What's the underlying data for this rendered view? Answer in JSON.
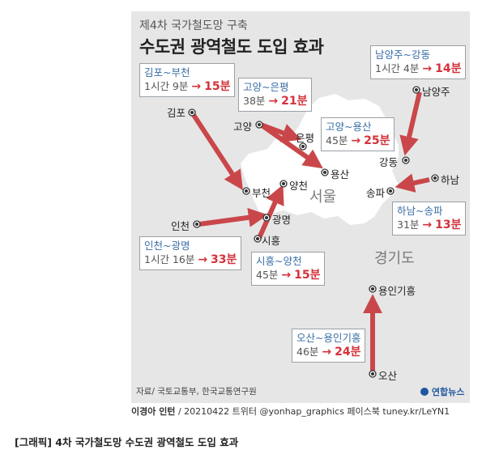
{
  "kicker": "제4차 국가철도망 구축",
  "headline": "수도권 광역철도 도입 효과",
  "routes": [
    {
      "id": "gimpo-bucheon",
      "title": "김포~부천",
      "before": "1시간 9분",
      "arrow": "→",
      "after": "15분"
    },
    {
      "id": "goyang-eunpyeong",
      "title": "고양~은평",
      "before": "38분",
      "arrow": "→",
      "after": "21분"
    },
    {
      "id": "goyang-yongsan",
      "title": "고양~용산",
      "before": "45분",
      "arrow": "→",
      "after": "25분"
    },
    {
      "id": "namyangju-gangdong",
      "title": "남양주~강동",
      "before": "1시간 4분",
      "arrow": "→",
      "after": "14분"
    },
    {
      "id": "hanam-songpa",
      "title": "하남~송파",
      "before": "31분",
      "arrow": "→",
      "after": "13분"
    },
    {
      "id": "incheon-gwangmyeong",
      "title": "인천~광명",
      "before": "1시간 16분",
      "arrow": "→",
      "after": "33분"
    },
    {
      "id": "siheung-yangcheon",
      "title": "시흥~양천",
      "before": "45분",
      "arrow": "→",
      "after": "15분"
    },
    {
      "id": "osan-yongin",
      "title": "오산~용인기흥",
      "before": "46분",
      "arrow": "→",
      "after": "24분"
    }
  ],
  "cities": {
    "gimpo": "김포",
    "bucheon": "부천",
    "goyang": "고양",
    "eunpyeong": "은평",
    "yongsan": "용산",
    "yangcheon": "양천",
    "namyangju": "남양주",
    "gangdong": "강동",
    "hanam": "하남",
    "songpa": "송파",
    "incheon": "인천",
    "gwangmyeong": "광명",
    "siheung": "시흥",
    "yongin": "용인기흥",
    "osan": "오산"
  },
  "regions": {
    "seoul": "서울",
    "gyeonggi": "경기도"
  },
  "source": "자료/ 국토교통부, 한국교통연구원",
  "logo": "연합뉴스",
  "byline": {
    "author": "이경아 인턴",
    "rest": "/ 20210422 트위터 @yonhap_graphics  페이스북 tuney.kr/LeYN1"
  },
  "caption": "[그래픽] 4차 국가철도망 수도권 광역철도 도입 효과",
  "colors": {
    "arrow": "#c9474a",
    "background": "#e6e6e6",
    "seoul": "#ffffff",
    "route_title": "#3a6ea5",
    "time_after": "#d4313a"
  },
  "icons": {
    "station": "target-dot-icon",
    "logo": "yonhap-logo-icon"
  }
}
